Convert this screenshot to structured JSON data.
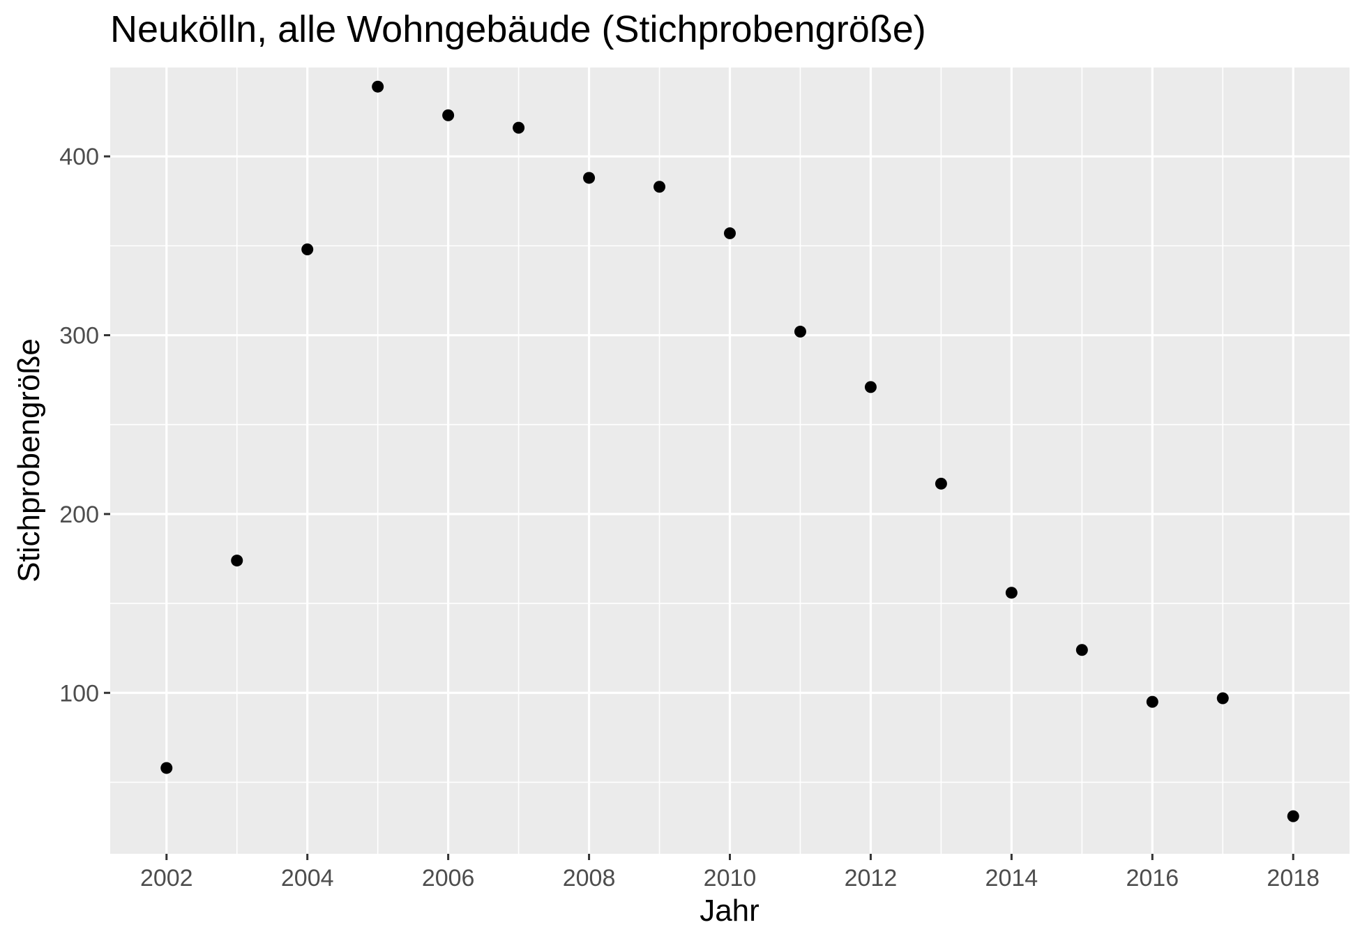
{
  "chart_data": {
    "type": "scatter",
    "title": "Neukölln, alle Wohngebäude (Stichprobengröße)",
    "xlabel": "Jahr",
    "ylabel": "Stichprobengröße",
    "x": [
      2002,
      2003,
      2004,
      2005,
      2006,
      2007,
      2008,
      2009,
      2010,
      2011,
      2012,
      2013,
      2014,
      2015,
      2016,
      2017,
      2018
    ],
    "y": [
      58,
      174,
      348,
      439,
      423,
      416,
      388,
      383,
      357,
      302,
      271,
      217,
      156,
      124,
      95,
      97,
      31
    ],
    "xlim": [
      2001.2,
      2018.8
    ],
    "ylim": [
      10,
      450
    ],
    "x_ticks": [
      "2002",
      "2004",
      "2006",
      "2008",
      "2010",
      "2012",
      "2014",
      "2016",
      "2018"
    ],
    "y_ticks": [
      "100",
      "200",
      "300",
      "400"
    ],
    "grid": true,
    "panel_color": "#ebebeb",
    "grid_color": "#ffffff",
    "point_color": "#000000",
    "tick_color": "#333333"
  }
}
